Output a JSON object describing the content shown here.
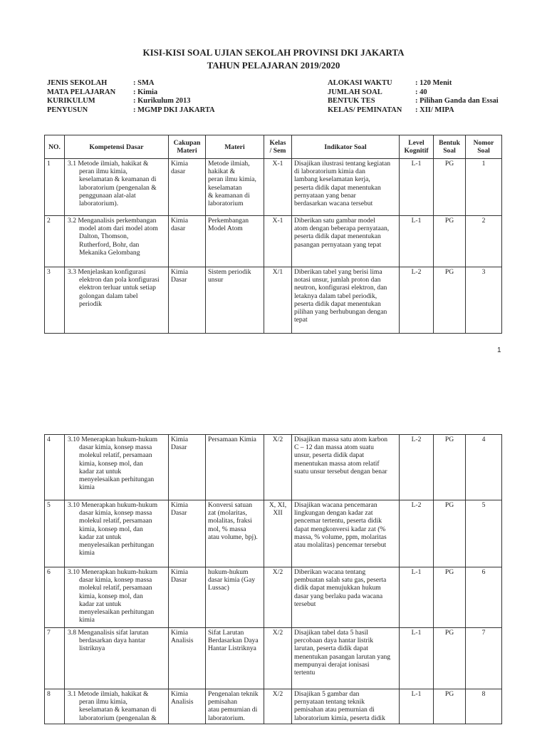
{
  "title": {
    "line1": "KISI-KISI SOAL UJIAN SEKOLAH PROVINSI DKI JAKARTA",
    "line2": "TAHUN PELAJARAN 2019/2020"
  },
  "info_left": [
    {
      "label": "JENIS SEKOLAH",
      "value": ": SMA"
    },
    {
      "label": "MATA PELAJARAN",
      "value": ": Kimia"
    },
    {
      "label": "KURIKULUM",
      "value": ": Kurikulum 2013"
    },
    {
      "label": "PENYUSUN",
      "value": ": MGMP DKI JAKARTA"
    }
  ],
  "info_right": [
    {
      "label": "ALOKASI WAKTU",
      "value": ": 120 Menit"
    },
    {
      "label": "JUMLAH SOAL",
      "value": ": 40"
    },
    {
      "label": "BENTUK TES",
      "value": ": Pilihan Ganda dan Essai"
    },
    {
      "label": "KELAS/ PEMINATAN",
      "value": ": XII/ MIPA"
    }
  ],
  "headers": [
    "NO.",
    "Kompetensi Dasar",
    "Cakupan\nMateri",
    "Materi",
    "Kelas\n/ Sem",
    "Indikator Soal",
    "Level\nKognitif",
    "Bentuk\nSoal",
    "Nomor\nSoal"
  ],
  "page_number": "1",
  "table1": [
    {
      "no": "1",
      "kd": "3.1 Metode ilmiah, hakikat &\nperan ilmu kimia,\nkeselamatan & keamanan di\nlaboratorium (pengenalan &\npenggunaan alat-alat\nlaboratorium).",
      "cakupan": "Kimia\ndasar",
      "materi": "Metode ilmiah,\nhakikat &\nperan ilmu kimia,\nkeselamatan\n& keamanan di\nlaboratorium",
      "kelas": "X-1",
      "indikator": "Disajikan ilustrasi tentang kegiatan\ndi laboratorium kimia dan\nlambang keselamatan kerja,\npeserta didik dapat menentukan\npernyataan yang benar\nberdasarkan wacana tersebut",
      "level": "L-1",
      "bentuk": "PG",
      "nomor": "1"
    },
    {
      "no": "2",
      "kd": "3.2 Menganalisis perkembangan\nmodel atom dari model atom\nDalton, Thomson,\nRutherford, Bohr, dan\nMekanika Gelombang",
      "cakupan": "Kimia\ndasar",
      "materi": "Perkembangan\nModel Atom",
      "kelas": "X-1",
      "indikator": "Diberikan satu gambar model\natom dengan beberapa pernyataan,\npeserta didik dapat menentukan\npasangan pernyataan yang tepat",
      "level": "L-1",
      "bentuk": "PG",
      "nomor": "2"
    },
    {
      "no": "3",
      "kd": "3.3 Menjelaskan konfigurasi\nelektron dan pola konfigurasi\nelektron terluar untuk setiap\ngolongan dalam tabel\nperiodik",
      "cakupan": "Kimia\nDasar",
      "materi": "Sistem periodik\nunsur",
      "kelas": "X/1",
      "indikator": "Diberikan tabel yang berisi lima\nnotasi unsur, jumlah proton dan\nneutron, konfigurasi elektron, dan\nletaknya dalam tabel periodik,\npeserta didik dapat menentukan\npilihan yang berhubungan dengan\ntepat",
      "level": "L-2",
      "bentuk": "PG",
      "nomor": "3"
    }
  ],
  "table2": [
    {
      "no": "4",
      "kd": "3.10 Menerapkan hukum-hukum\ndasar kimia, konsep massa\nmolekul relatif, persamaan\nkimia, konsep mol, dan\nkadar zat untuk\nmenyelesaikan perhitungan\nkimia",
      "cakupan": "Kimia\nDasar",
      "materi": "Persamaan Kimia",
      "kelas": "X/2",
      "indikator": "Disajikan massa satu atom karbon\nC – 12 dan massa atom suatu\nunsur, peserta didik dapat\nmenentukan massa atom relatif\nsuatu unsur tersebut dengan benar",
      "level": "L-2",
      "bentuk": "PG",
      "nomor": "4"
    },
    {
      "no": "5",
      "kd": "3.10 Menerapkan hukum-hukum\ndasar kimia, konsep massa\nmolekul relatif, persamaan\nkimia, konsep mol, dan\nkadar zat untuk\nmenyelesaikan perhitungan\nkimia",
      "cakupan": "Kimia\nDasar",
      "materi": "Konversi satuan\nzat (molaritas,\nmolalitas, fraksi\nmol, % massa\natau volume, bpj).",
      "kelas": "X, XI,\nXII",
      "indikator": "Disajikan wacana pencemaran\nlingkungan dengan kadar zat\npencemar tertentu, peserta didik\ndapat mengkonversi kadar zat (%\nmassa, % volume, ppm, molaritas\natau molalitas) pencemar tersebut",
      "level": "L-2",
      "bentuk": "PG",
      "nomor": "5"
    },
    {
      "no": "6",
      "kd": "3.10 Menerapkan hukum-hukum\ndasar kimia, konsep massa\nmolekul relatif, persamaan\nkimia, konsep mol, dan\nkadar zat untuk\nmenyelesaikan perhitungan\nkimia",
      "cakupan": "Kimia\nDasar",
      "materi": "hukum-hukum\ndasar kimia (Gay\nLussac)",
      "kelas": "X/2",
      "indikator": "Diberikan wacana tentang\npembuatan salah satu gas, peserta\ndidik dapat menujukkan hukum\ndasar yang berlaku pada wacana\ntersebut",
      "level": "L-1",
      "bentuk": "PG",
      "nomor": "6"
    },
    {
      "no": "7",
      "kd": "3.8 Menganalisis sifat larutan\nberdasarkan daya hantar\nlistriknya",
      "cakupan": "Kimia\nAnalisis",
      "materi": "Sifat Larutan\nBerdasarkan Daya\nHantar Listriknya",
      "kelas": "X/2",
      "indikator": "Disajikan tabel data 5 hasil\npercobaan daya hantar listrik\nlarutan, peserta didik dapat\nmenentukan pasangan larutan yang\nmempunyai derajat ionisasi\ntertentu",
      "level": "L-1",
      "bentuk": "PG",
      "nomor": "7"
    },
    {
      "no": "8",
      "kd": "3.1 Metode ilmiah, hakikat &\nperan ilmu kimia,\nkeselamatan & keamanan di\nlaboratorium (pengenalan &",
      "cakupan": "Kimia\nAnalisis",
      "materi": "Pengenalan teknik\npemisahan\natau pemurnian di\nlaboratorium.",
      "kelas": "X/2",
      "indikator": "Disajikan 5 gambar dan\npernyataan tentang teknik\npemisahan atau pemurnian di\nlaboratorium kimia, peserta didik",
      "level": "L-1",
      "bentuk": "PG",
      "nomor": "8"
    }
  ]
}
